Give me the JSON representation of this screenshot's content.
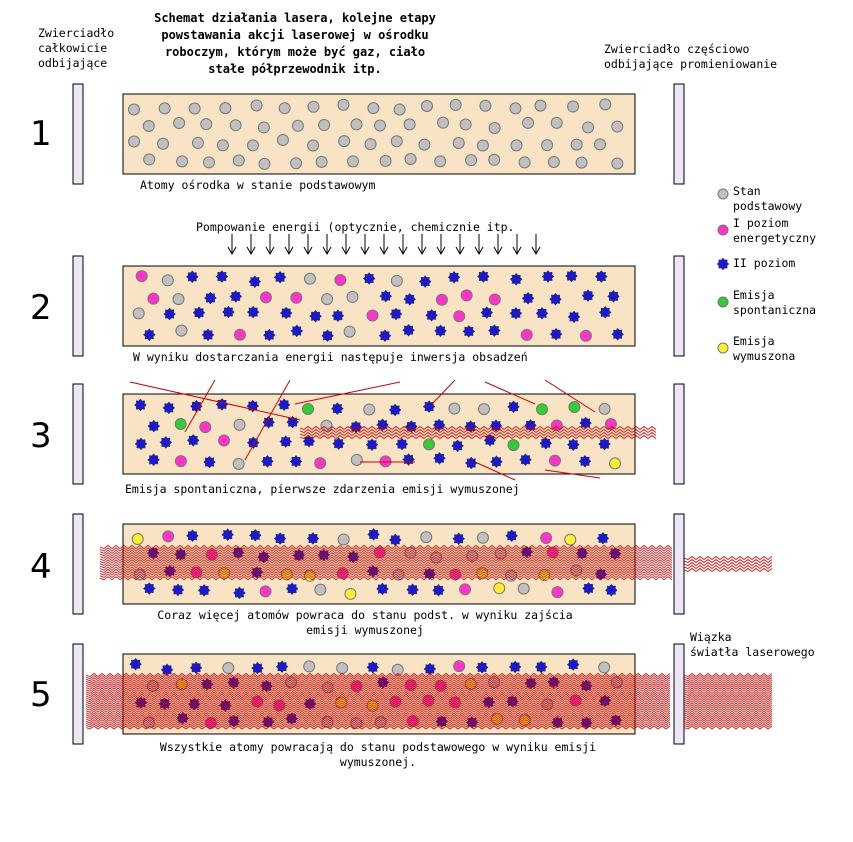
{
  "title": "Schemat działania lasera, kolejne etapy powstawania akcji laserowej w ośrodku roboczym, którym może być gaz, ciało stałe półprzewodnik itp.",
  "labels": {
    "left_mirror": "Zwierciadło\ncałkowicie\nodbijające",
    "right_mirror": "Zwierciadło częściowo\nodbijające promieniowanie",
    "pumping": "Pompowanie energii (optycznie, chemicznie itp.",
    "laser_beam": "Wiązka\nświatła laserowego"
  },
  "steps": [
    {
      "number": "1",
      "caption": "Atomy ośrodka w stanie podstawowym"
    },
    {
      "number": "2",
      "caption": "W wyniku dostarczania energii następuje inwersja obsadzeń"
    },
    {
      "number": "3",
      "caption": "Emisja spontaniczna, pierwsze zdarzenia emisji wymuszonej"
    },
    {
      "number": "4",
      "caption": "Coraz więcej atomów powraca do stanu podst. w wyniku zajścia\nemisji wymuszonej"
    },
    {
      "number": "5",
      "caption": "Wszystkie atomy powracają do stanu podstawowego w wyniku emisji\nwymuszonej."
    }
  ],
  "legend": [
    {
      "label": "Stan\npodstawowy",
      "color": "#c0c0c0"
    },
    {
      "label": "I poziom\nenergetyczny",
      "color": "#ff33cc"
    },
    {
      "label": "II poziom",
      "color": "#1a1acc"
    },
    {
      "label": "Emisja\nspontaniczna",
      "color": "#33cc33"
    },
    {
      "label": "Emisja\nwymuszona",
      "color": "#ffee33"
    }
  ],
  "colors": {
    "medium": "#f8e4c4",
    "mirror": "#ece6f6",
    "wave": "#cc0000"
  }
}
